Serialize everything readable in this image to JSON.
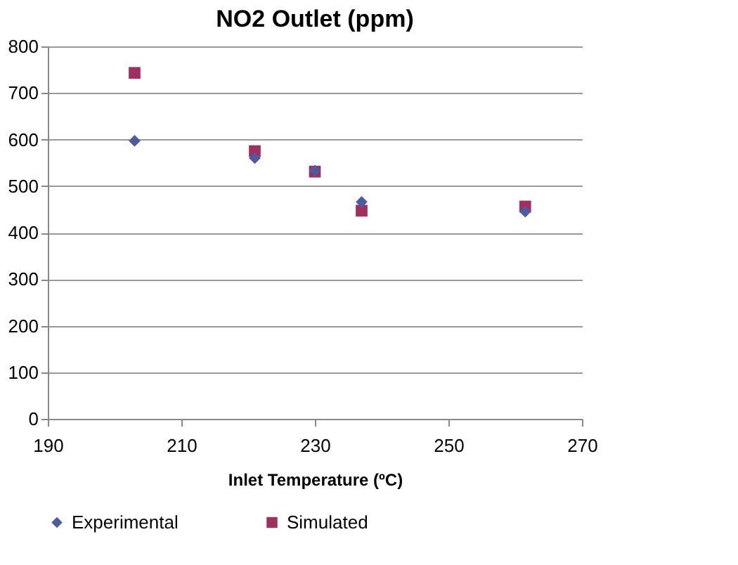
{
  "chart_data": {
    "type": "scatter",
    "title": "NO2 Outlet (ppm)",
    "xlabel": "Inlet Temperature (ºC)",
    "x": [
      203,
      221,
      230,
      237,
      261.5
    ],
    "series": [
      {
        "name": "Experimental",
        "color": "#4f5b9f",
        "marker": "diamond",
        "values": [
          597,
          560,
          533,
          466,
          445
        ]
      },
      {
        "name": "Simulated",
        "color": "#a0305f",
        "marker": "square",
        "values": [
          743,
          575,
          531,
          447,
          456
        ]
      }
    ],
    "xlim": [
      190,
      270
    ],
    "xticks": [
      190,
      210,
      230,
      250,
      270
    ],
    "ylim": [
      0,
      800
    ],
    "yticks": [
      0,
      100,
      200,
      300,
      400,
      500,
      600,
      700,
      800
    ],
    "grid": "y",
    "legend": "bottom"
  }
}
